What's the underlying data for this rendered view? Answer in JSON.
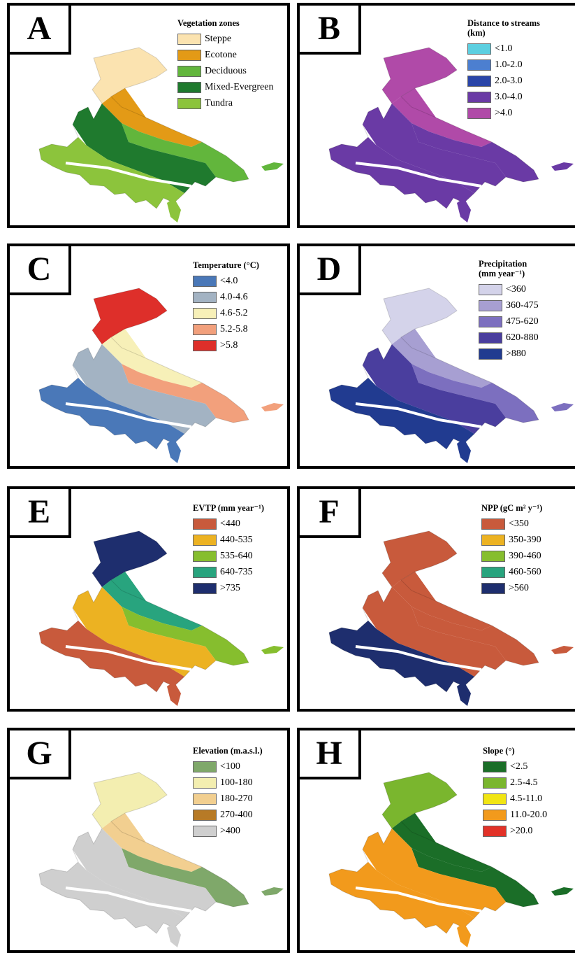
{
  "panels": [
    {
      "letter": "A",
      "legend_title": "Vegetation zones",
      "items": [
        {
          "label": "Steppe",
          "color": "#fbe3b0"
        },
        {
          "label": "Ecotone",
          "color": "#e39a16"
        },
        {
          "label": "Deciduous",
          "color": "#62b63c"
        },
        {
          "label": "Mixed-Evergreen",
          "color": "#1f7a2e"
        },
        {
          "label": "Tundra",
          "color": "#8cc43c"
        }
      ]
    },
    {
      "letter": "B",
      "legend_title": "Distance to streams",
      "legend_subtitle": "(km)",
      "items": [
        {
          "label": "<1.0",
          "color": "#5ccfe0"
        },
        {
          "label": "1.0-2.0",
          "color": "#4c7fd0"
        },
        {
          "label": "2.0-3.0",
          "color": "#2a45a8"
        },
        {
          "label": "3.0-4.0",
          "color": "#6a3aa5"
        },
        {
          "label": ">4.0",
          "color": "#b04aa8"
        }
      ]
    },
    {
      "letter": "C",
      "legend_title": "Temperature (°C)",
      "items": [
        {
          "label": "<4.0",
          "color": "#4a78b8"
        },
        {
          "label": "4.0-4.6",
          "color": "#a3b3c3"
        },
        {
          "label": "4.6-5.2",
          "color": "#f7f0b8"
        },
        {
          "label": "5.2-5.8",
          "color": "#f2a07c"
        },
        {
          "label": ">5.8",
          "color": "#de2f2a"
        }
      ]
    },
    {
      "letter": "D",
      "legend_title": "Precipitation",
      "legend_subtitle": "(mm year⁻¹)",
      "items": [
        {
          "label": "<360",
          "color": "#d4d3ea"
        },
        {
          "label": "360-475",
          "color": "#a79fd2"
        },
        {
          "label": "475-620",
          "color": "#7c6fbf"
        },
        {
          "label": "620-880",
          "color": "#4a3e9e"
        },
        {
          "label": ">880",
          "color": "#213b90"
        }
      ]
    },
    {
      "letter": "E",
      "legend_title": "EVTP (mm year⁻¹)",
      "items": [
        {
          "label": "<440",
          "color": "#c85a3c"
        },
        {
          "label": "440-535",
          "color": "#ecb222"
        },
        {
          "label": "535-640",
          "color": "#86be2e"
        },
        {
          "label": "640-735",
          "color": "#28a47e"
        },
        {
          "label": ">735",
          "color": "#1e2e6e"
        }
      ]
    },
    {
      "letter": "F",
      "legend_title": "NPP (gC m² y⁻¹)",
      "items": [
        {
          "label": "<350",
          "color": "#c85a3c"
        },
        {
          "label": "350-390",
          "color": "#ecb222"
        },
        {
          "label": "390-460",
          "color": "#86be2e"
        },
        {
          "label": "460-560",
          "color": "#28a47e"
        },
        {
          "label": ">560",
          "color": "#1e2e6e"
        }
      ]
    },
    {
      "letter": "G",
      "legend_title": "Elevation (m.a.s.l.)",
      "items": [
        {
          "label": "<100",
          "color": "#7fa86a"
        },
        {
          "label": "100-180",
          "color": "#f3eeb0"
        },
        {
          "label": "180-270",
          "color": "#f2cf90"
        },
        {
          "label": "270-400",
          "color": "#b77a26"
        },
        {
          "label": ">400",
          "color": "#cfcfcf"
        }
      ]
    },
    {
      "letter": "H",
      "legend_title": "Slope (°)",
      "items": [
        {
          "label": "<2.5",
          "color": "#1b6e28"
        },
        {
          "label": "2.5-4.5",
          "color": "#7ab62e"
        },
        {
          "label": "4.5-11.0",
          "color": "#f1e514"
        },
        {
          "label": "11.0-20.0",
          "color": "#f29a1c"
        },
        {
          "label": ">20.0",
          "color": "#e23228"
        }
      ]
    }
  ]
}
